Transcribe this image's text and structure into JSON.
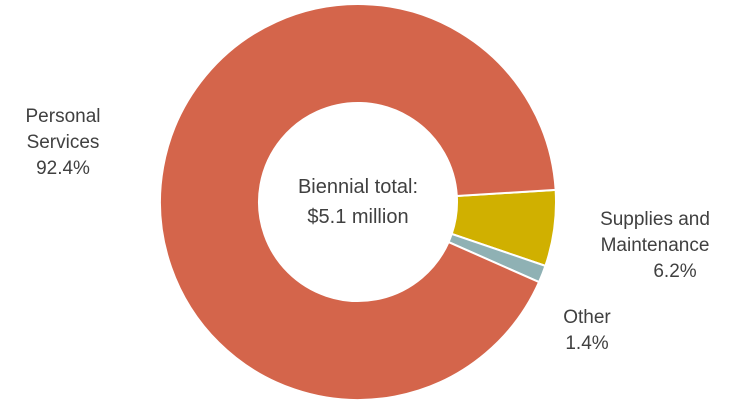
{
  "chart_data": {
    "type": "pie",
    "variant": "donut",
    "center_label": [
      "Biennial total:",
      "$5.1 million"
    ],
    "slices": [
      {
        "label": "Personal Services",
        "value": 92.4,
        "value_label": "92.4%",
        "color": "#D4654B"
      },
      {
        "label": "Supplies and Maintenance",
        "value": 6.2,
        "value_label": "6.2%",
        "color": "#D0B000"
      },
      {
        "label": "Other",
        "value": 1.4,
        "value_label": "1.4%",
        "color": "#8FB1B4"
      }
    ],
    "legend": "none",
    "labels": "outside"
  }
}
